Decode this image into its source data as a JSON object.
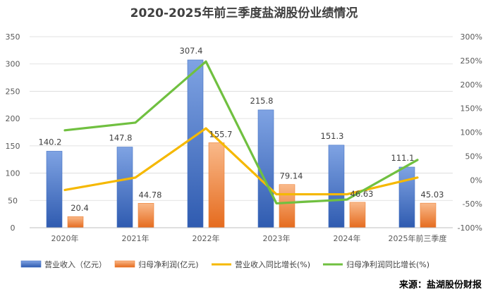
{
  "chart_data": {
    "type": "bar+line",
    "title": "2020-2025年前三季度盐湖股份业绩情况",
    "categories": [
      "2020年",
      "2021年",
      "2022年",
      "2023年",
      "2024年",
      "2025年前三季度"
    ],
    "left_axis": {
      "ylim": [
        0,
        350
      ],
      "ticks": [
        "0",
        "50",
        "100",
        "150",
        "200",
        "250",
        "300",
        "350"
      ]
    },
    "right_axis": {
      "ylim": [
        -100,
        300
      ],
      "ticks": [
        "-100%",
        "-50%",
        "0%",
        "50%",
        "100%",
        "150%",
        "200%",
        "250%",
        "300%"
      ]
    },
    "series": [
      {
        "name": "营业收入（亿元）",
        "type": "bar",
        "axis": "left",
        "color": "#4472C4",
        "values": [
          140.2,
          147.8,
          307.4,
          215.8,
          151.3,
          111.1
        ],
        "labels": [
          "140.2",
          "147.8",
          "307.4",
          "215.8",
          "151.3",
          "111.1"
        ]
      },
      {
        "name": "归母净利润(亿元)",
        "type": "bar",
        "axis": "left",
        "color": "#ED7D31",
        "values": [
          20.4,
          44.78,
          155.7,
          79.14,
          46.63,
          45.03
        ],
        "labels": [
          "20.4",
          "44.78",
          "155.7",
          "79.14",
          "46.63",
          "45.03"
        ]
      },
      {
        "name": "营业收入同比增长(%)",
        "type": "line",
        "axis": "right",
        "color": "#F5B800",
        "values": [
          -21,
          5,
          108,
          -30,
          -30,
          5
        ]
      },
      {
        "name": "归母净利润同比增长(%)",
        "type": "line",
        "axis": "right",
        "color": "#70C040",
        "values": [
          104,
          120,
          248,
          -49,
          -41,
          42
        ]
      }
    ]
  },
  "source": "来源：盐湖股份财报"
}
